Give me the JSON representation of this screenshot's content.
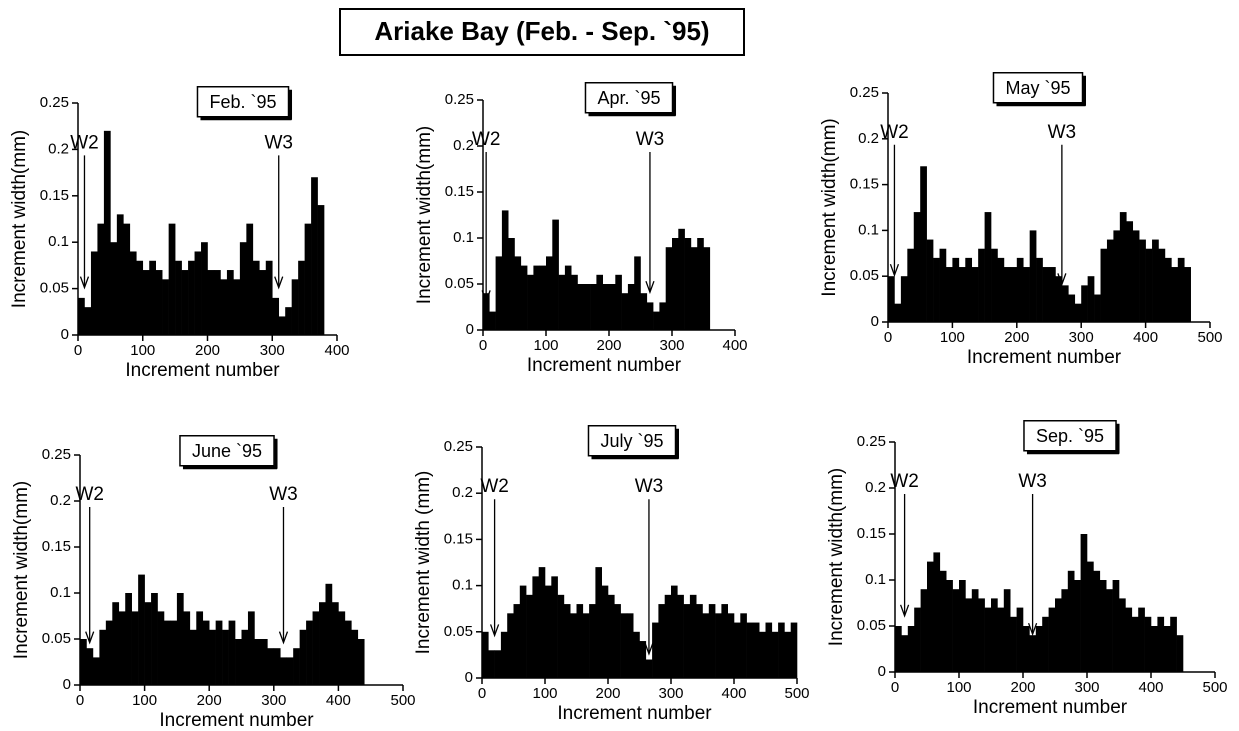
{
  "title": "Ariake Bay (Feb. - Sep. `95)",
  "chart_data": [
    {
      "type": "bar",
      "title": "Feb. `95",
      "xlabel": "Increment number",
      "ylabel": "Increment width(mm)",
      "color": "#000000",
      "x": [
        0,
        10,
        20,
        30,
        40,
        50,
        60,
        70,
        80,
        90,
        100,
        110,
        120,
        130,
        140,
        150,
        160,
        170,
        180,
        190,
        200,
        210,
        220,
        230,
        240,
        250,
        260,
        270,
        280,
        290,
        300,
        310,
        320,
        330,
        340,
        350,
        360,
        370
      ],
      "values": [
        0.04,
        0.03,
        0.09,
        0.12,
        0.22,
        0.1,
        0.13,
        0.12,
        0.09,
        0.08,
        0.07,
        0.08,
        0.07,
        0.06,
        0.12,
        0.08,
        0.07,
        0.08,
        0.09,
        0.1,
        0.07,
        0.07,
        0.06,
        0.07,
        0.06,
        0.1,
        0.12,
        0.08,
        0.07,
        0.08,
        0.04,
        0.02,
        0.03,
        0.06,
        0.08,
        0.12,
        0.17,
        0.14
      ],
      "xlim": [
        0,
        400
      ],
      "xticks": [
        0,
        100,
        200,
        300,
        400
      ],
      "ylim": [
        0,
        0.25
      ],
      "yticks": [
        0,
        0.05,
        0.1,
        0.15,
        0.2,
        0.25
      ],
      "annotations": [
        {
          "text": "W2",
          "x": 10,
          "y": 0.05
        },
        {
          "text": "W3",
          "x": 310,
          "y": 0.05
        }
      ]
    },
    {
      "type": "bar",
      "title": "Apr. `95",
      "xlabel": "Increment number",
      "ylabel": "Increment width(mm)",
      "color": "#000000",
      "x": [
        0,
        10,
        20,
        30,
        40,
        50,
        60,
        70,
        80,
        90,
        100,
        110,
        120,
        130,
        140,
        150,
        160,
        170,
        180,
        190,
        200,
        210,
        220,
        230,
        240,
        250,
        260,
        270,
        280,
        290,
        300,
        310,
        320,
        330,
        340,
        350
      ],
      "values": [
        0.04,
        0.02,
        0.08,
        0.13,
        0.1,
        0.08,
        0.07,
        0.06,
        0.07,
        0.07,
        0.08,
        0.12,
        0.06,
        0.07,
        0.06,
        0.05,
        0.05,
        0.05,
        0.06,
        0.05,
        0.05,
        0.06,
        0.04,
        0.05,
        0.08,
        0.04,
        0.03,
        0.02,
        0.03,
        0.09,
        0.1,
        0.11,
        0.1,
        0.09,
        0.1,
        0.09
      ],
      "xlim": [
        0,
        400
      ],
      "xticks": [
        0,
        100,
        200,
        300,
        400
      ],
      "ylim": [
        0,
        0.25
      ],
      "yticks": [
        0,
        0.05,
        0.1,
        0.15,
        0.2,
        0.25
      ],
      "annotations": [
        {
          "text": "W2",
          "x": 5,
          "y": 0.03
        },
        {
          "text": "W3",
          "x": 265,
          "y": 0.04
        }
      ]
    },
    {
      "type": "bar",
      "title": "May `95",
      "xlabel": "Increment number",
      "ylabel": "Increment width(mm)",
      "color": "#000000",
      "x": [
        0,
        10,
        20,
        30,
        40,
        50,
        60,
        70,
        80,
        90,
        100,
        110,
        120,
        130,
        140,
        150,
        160,
        170,
        180,
        190,
        200,
        210,
        220,
        230,
        240,
        250,
        260,
        270,
        280,
        290,
        300,
        310,
        320,
        330,
        340,
        350,
        360,
        370,
        380,
        390,
        400,
        410,
        420,
        430,
        440,
        450,
        460
      ],
      "values": [
        0.05,
        0.02,
        0.05,
        0.08,
        0.12,
        0.17,
        0.09,
        0.07,
        0.08,
        0.06,
        0.07,
        0.06,
        0.07,
        0.06,
        0.08,
        0.12,
        0.08,
        0.07,
        0.06,
        0.06,
        0.07,
        0.06,
        0.1,
        0.07,
        0.06,
        0.06,
        0.05,
        0.04,
        0.03,
        0.02,
        0.04,
        0.05,
        0.03,
        0.08,
        0.09,
        0.1,
        0.12,
        0.11,
        0.1,
        0.09,
        0.08,
        0.09,
        0.08,
        0.07,
        0.06,
        0.07,
        0.06
      ],
      "xlim": [
        0,
        500
      ],
      "xticks": [
        0,
        100,
        200,
        300,
        400,
        500
      ],
      "ylim": [
        0,
        0.25
      ],
      "yticks": [
        0,
        0.05,
        0.1,
        0.15,
        0.2,
        0.25
      ],
      "annotations": [
        {
          "text": "W2",
          "x": 10,
          "y": 0.05
        },
        {
          "text": "W3",
          "x": 270,
          "y": 0.04
        }
      ]
    },
    {
      "type": "bar",
      "title": "June `95",
      "xlabel": "Increment number",
      "ylabel": "Increment width(mm)",
      "color": "#000000",
      "x": [
        0,
        10,
        20,
        30,
        40,
        50,
        60,
        70,
        80,
        90,
        100,
        110,
        120,
        130,
        140,
        150,
        160,
        170,
        180,
        190,
        200,
        210,
        220,
        230,
        240,
        250,
        260,
        270,
        280,
        290,
        300,
        310,
        320,
        330,
        340,
        350,
        360,
        370,
        380,
        390,
        400,
        410,
        420,
        430
      ],
      "values": [
        0.05,
        0.04,
        0.03,
        0.06,
        0.07,
        0.09,
        0.08,
        0.1,
        0.08,
        0.12,
        0.09,
        0.1,
        0.08,
        0.07,
        0.07,
        0.1,
        0.08,
        0.06,
        0.08,
        0.07,
        0.06,
        0.07,
        0.06,
        0.07,
        0.05,
        0.06,
        0.08,
        0.05,
        0.05,
        0.04,
        0.04,
        0.03,
        0.03,
        0.04,
        0.06,
        0.07,
        0.08,
        0.09,
        0.11,
        0.09,
        0.08,
        0.07,
        0.06,
        0.05
      ],
      "xlim": [
        0,
        500
      ],
      "xticks": [
        0,
        100,
        200,
        300,
        400,
        500
      ],
      "ylim": [
        0,
        0.25
      ],
      "yticks": [
        0,
        0.05,
        0.1,
        0.15,
        0.2,
        0.25
      ],
      "annotations": [
        {
          "text": "W2",
          "x": 15,
          "y": 0.045
        },
        {
          "text": "W3",
          "x": 315,
          "y": 0.045
        }
      ]
    },
    {
      "type": "bar",
      "title": "July `95",
      "xlabel": "Increment number",
      "ylabel": "Increment width (mm)",
      "color": "#000000",
      "x": [
        0,
        10,
        20,
        30,
        40,
        50,
        60,
        70,
        80,
        90,
        100,
        110,
        120,
        130,
        140,
        150,
        160,
        170,
        180,
        190,
        200,
        210,
        220,
        230,
        240,
        250,
        260,
        270,
        280,
        290,
        300,
        310,
        320,
        330,
        340,
        350,
        360,
        370,
        380,
        390,
        400,
        410,
        420,
        430,
        440,
        450,
        460,
        470,
        480,
        490
      ],
      "values": [
        0.05,
        0.03,
        0.03,
        0.05,
        0.07,
        0.08,
        0.1,
        0.09,
        0.11,
        0.12,
        0.1,
        0.11,
        0.09,
        0.08,
        0.07,
        0.08,
        0.07,
        0.08,
        0.12,
        0.1,
        0.09,
        0.08,
        0.07,
        0.07,
        0.05,
        0.04,
        0.02,
        0.06,
        0.08,
        0.09,
        0.1,
        0.09,
        0.08,
        0.09,
        0.08,
        0.07,
        0.08,
        0.07,
        0.08,
        0.07,
        0.06,
        0.07,
        0.06,
        0.06,
        0.05,
        0.06,
        0.05,
        0.06,
        0.05,
        0.06
      ],
      "xlim": [
        0,
        500
      ],
      "xticks": [
        0,
        100,
        200,
        300,
        400,
        500
      ],
      "ylim": [
        0,
        0.25
      ],
      "yticks": [
        0,
        0.05,
        0.1,
        0.15,
        0.2,
        0.25
      ],
      "annotations": [
        {
          "text": "W2",
          "x": 20,
          "y": 0.045
        },
        {
          "text": "W3",
          "x": 265,
          "y": 0.025
        }
      ]
    },
    {
      "type": "bar",
      "title": "Sep. `95",
      "xlabel": "Increment number",
      "ylabel": "Increment width(mm)",
      "color": "#000000",
      "x": [
        0,
        10,
        20,
        30,
        40,
        50,
        60,
        70,
        80,
        90,
        100,
        110,
        120,
        130,
        140,
        150,
        160,
        170,
        180,
        190,
        200,
        210,
        220,
        230,
        240,
        250,
        260,
        270,
        280,
        290,
        300,
        310,
        320,
        330,
        340,
        350,
        360,
        370,
        380,
        390,
        400,
        410,
        420,
        430,
        440
      ],
      "values": [
        0.05,
        0.04,
        0.05,
        0.07,
        0.09,
        0.12,
        0.13,
        0.11,
        0.1,
        0.09,
        0.1,
        0.08,
        0.09,
        0.08,
        0.07,
        0.08,
        0.07,
        0.09,
        0.06,
        0.07,
        0.05,
        0.04,
        0.05,
        0.06,
        0.07,
        0.08,
        0.09,
        0.11,
        0.1,
        0.15,
        0.12,
        0.11,
        0.1,
        0.09,
        0.1,
        0.08,
        0.07,
        0.06,
        0.07,
        0.06,
        0.05,
        0.06,
        0.05,
        0.06,
        0.04
      ],
      "xlim": [
        0,
        500
      ],
      "xticks": [
        0,
        100,
        200,
        300,
        400,
        500
      ],
      "ylim": [
        0,
        0.25
      ],
      "yticks": [
        0,
        0.05,
        0.1,
        0.15,
        0.2,
        0.25
      ],
      "annotations": [
        {
          "text": "W2",
          "x": 15,
          "y": 0.06
        },
        {
          "text": "W3",
          "x": 215,
          "y": 0.04
        }
      ]
    }
  ]
}
